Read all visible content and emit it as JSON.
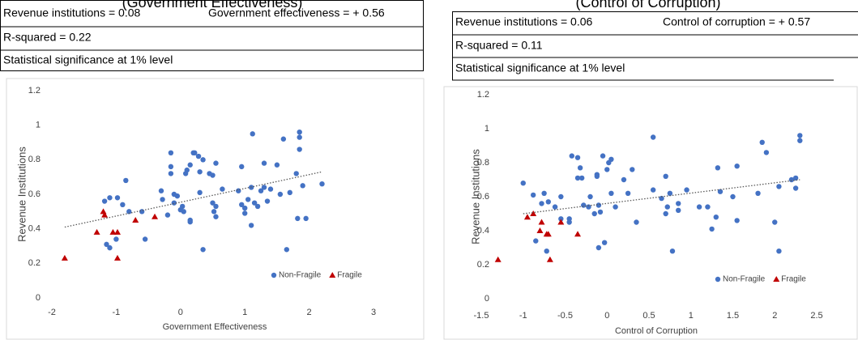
{
  "chart_data": [
    {
      "type": "scatter",
      "title": "(Government Effectiveness)",
      "annotations": [
        "Revenue institutions = 0.08",
        "Government effectiveness = + 0.56",
        "R-squared = 0.22",
        "Statistical significance at 1% level"
      ],
      "x_label": "Government Effectiveness",
      "y_label": "Revenue Institutions",
      "xlim": [
        -2,
        3
      ],
      "xticks": [
        -2,
        -1,
        0,
        1,
        2,
        3
      ],
      "ylim": [
        0,
        1.2
      ],
      "yticks": [
        0,
        0.2,
        0.4,
        0.6,
        0.8,
        1,
        1.2
      ],
      "legend": "lower right",
      "series": [
        {
          "name": "Non-Fragile",
          "color": "#4472c4",
          "marker": "circle",
          "x": [
            -1.18,
            -1.1,
            -0.98,
            -0.9,
            -0.85,
            -0.8,
            -1.0,
            -1.15,
            -1.1,
            -0.55,
            -0.6,
            -0.3,
            -0.28,
            -0.15,
            -0.15,
            -0.15,
            -0.1,
            -0.05,
            -0.1,
            -0.2,
            0,
            0.03,
            0.05,
            0.08,
            0.1,
            0.15,
            0.2,
            0.22,
            0.28,
            0.3,
            0.35,
            0.45,
            0.5,
            0.55,
            0.5,
            0.55,
            0.52,
            0.55,
            0.15,
            0.15,
            0.35,
            0.3,
            0.65,
            0.9,
            0.95,
            0.95,
            1.0,
            1.0,
            1.05,
            1.1,
            1.1,
            1.12,
            1.15,
            1.2,
            1.25,
            1.3,
            1.3,
            1.35,
            1.4,
            1.5,
            1.55,
            1.6,
            1.65,
            1.7,
            1.8,
            1.82,
            1.85,
            1.85,
            1.85,
            1.9,
            1.95,
            2.2
          ],
          "values": [
            0.56,
            0.58,
            0.58,
            0.54,
            0.68,
            0.5,
            0.34,
            0.31,
            0.29,
            0.34,
            0.5,
            0.62,
            0.57,
            0.84,
            0.76,
            0.72,
            0.6,
            0.59,
            0.55,
            0.48,
            0.51,
            0.53,
            0.5,
            0.72,
            0.74,
            0.77,
            0.84,
            0.84,
            0.82,
            0.73,
            0.8,
            0.72,
            0.71,
            0.78,
            0.55,
            0.53,
            0.5,
            0.47,
            0.45,
            0.44,
            0.28,
            0.61,
            0.63,
            0.62,
            0.76,
            0.54,
            0.52,
            0.49,
            0.57,
            0.64,
            0.42,
            0.95,
            0.55,
            0.53,
            0.62,
            0.64,
            0.78,
            0.56,
            0.63,
            0.77,
            0.6,
            0.92,
            0.28,
            0.61,
            0.72,
            0.46,
            0.93,
            0.96,
            0.86,
            0.65,
            0.46,
            0.66
          ]
        },
        {
          "name": "Fragile",
          "color": "#c00000",
          "marker": "triangle",
          "x": [
            -1.8,
            -1.3,
            -1.2,
            -1.18,
            -1.05,
            -0.98,
            -0.98,
            -0.7,
            -0.4
          ],
          "values": [
            0.23,
            0.38,
            0.5,
            0.48,
            0.38,
            0.38,
            0.23,
            0.45,
            0.47
          ]
        }
      ],
      "trendline": {
        "x": [
          -1.8,
          2.2
        ],
        "y": [
          0.41,
          0.73
        ]
      }
    },
    {
      "type": "scatter",
      "title": "(Control of Corruption)",
      "annotations": [
        "Revenue institutions = 0.06",
        "Control of corruption = + 0.57",
        "R-squared = 0.11",
        "Statistical significance at 1% level"
      ],
      "x_label": "Control of Corruption",
      "y_label": "Revenue Institutions",
      "xlim": [
        -1.5,
        2.5
      ],
      "xticks": [
        -1.5,
        -1,
        -0.5,
        0,
        0.5,
        1,
        1.5,
        2,
        2.5
      ],
      "ylim": [
        0,
        1.2
      ],
      "yticks": [
        0,
        0.2,
        0.4,
        0.6,
        0.8,
        1,
        1.2
      ],
      "legend": "lower right",
      "series": [
        {
          "name": "Non-Fragile",
          "color": "#4472c4",
          "marker": "circle",
          "x": [
            -1.0,
            -0.88,
            -0.85,
            -0.78,
            -0.75,
            -0.7,
            -0.72,
            -0.62,
            -0.55,
            -0.55,
            -0.45,
            -0.45,
            -0.42,
            -0.35,
            -0.35,
            -0.32,
            -0.3,
            -0.28,
            -0.22,
            -0.2,
            -0.15,
            -0.12,
            -0.12,
            -0.1,
            -0.1,
            -0.08,
            -0.05,
            -0.03,
            0,
            0.02,
            0.05,
            0.05,
            0.1,
            0.2,
            0.25,
            0.3,
            0.35,
            0.55,
            0.55,
            0.65,
            0.7,
            0.7,
            0.72,
            0.75,
            0.78,
            0.85,
            0.85,
            0.95,
            1.1,
            1.2,
            1.25,
            1.3,
            1.32,
            1.35,
            1.5,
            1.55,
            1.55,
            1.8,
            1.85,
            1.9,
            2.0,
            2.05,
            2.05,
            2.2,
            2.25,
            2.25,
            2.3,
            2.3
          ],
          "values": [
            0.68,
            0.61,
            0.34,
            0.56,
            0.62,
            0.57,
            0.28,
            0.54,
            0.6,
            0.47,
            0.47,
            0.45,
            0.84,
            0.83,
            0.71,
            0.77,
            0.71,
            0.55,
            0.54,
            0.6,
            0.5,
            0.72,
            0.73,
            0.55,
            0.3,
            0.51,
            0.84,
            0.33,
            0.76,
            0.8,
            0.82,
            0.62,
            0.54,
            0.7,
            0.62,
            0.76,
            0.45,
            0.95,
            0.64,
            0.59,
            0.72,
            0.5,
            0.54,
            0.62,
            0.28,
            0.56,
            0.52,
            0.64,
            0.54,
            0.54,
            0.41,
            0.48,
            0.77,
            0.63,
            0.6,
            0.46,
            0.78,
            0.62,
            0.92,
            0.86,
            0.45,
            0.66,
            0.28,
            0.7,
            0.65,
            0.71,
            0.93,
            0.96
          ]
        },
        {
          "name": "Fragile",
          "color": "#c00000",
          "marker": "triangle",
          "x": [
            -1.3,
            -0.95,
            -0.88,
            -0.8,
            -0.78,
            -0.72,
            -0.7,
            -0.68,
            -0.55,
            -0.35
          ],
          "values": [
            0.23,
            0.48,
            0.5,
            0.4,
            0.45,
            0.38,
            0.38,
            0.23,
            0.45,
            0.38
          ]
        }
      ],
      "trendline": {
        "x": [
          -1.0,
          2.3
        ],
        "y": [
          0.5,
          0.7
        ]
      }
    }
  ]
}
